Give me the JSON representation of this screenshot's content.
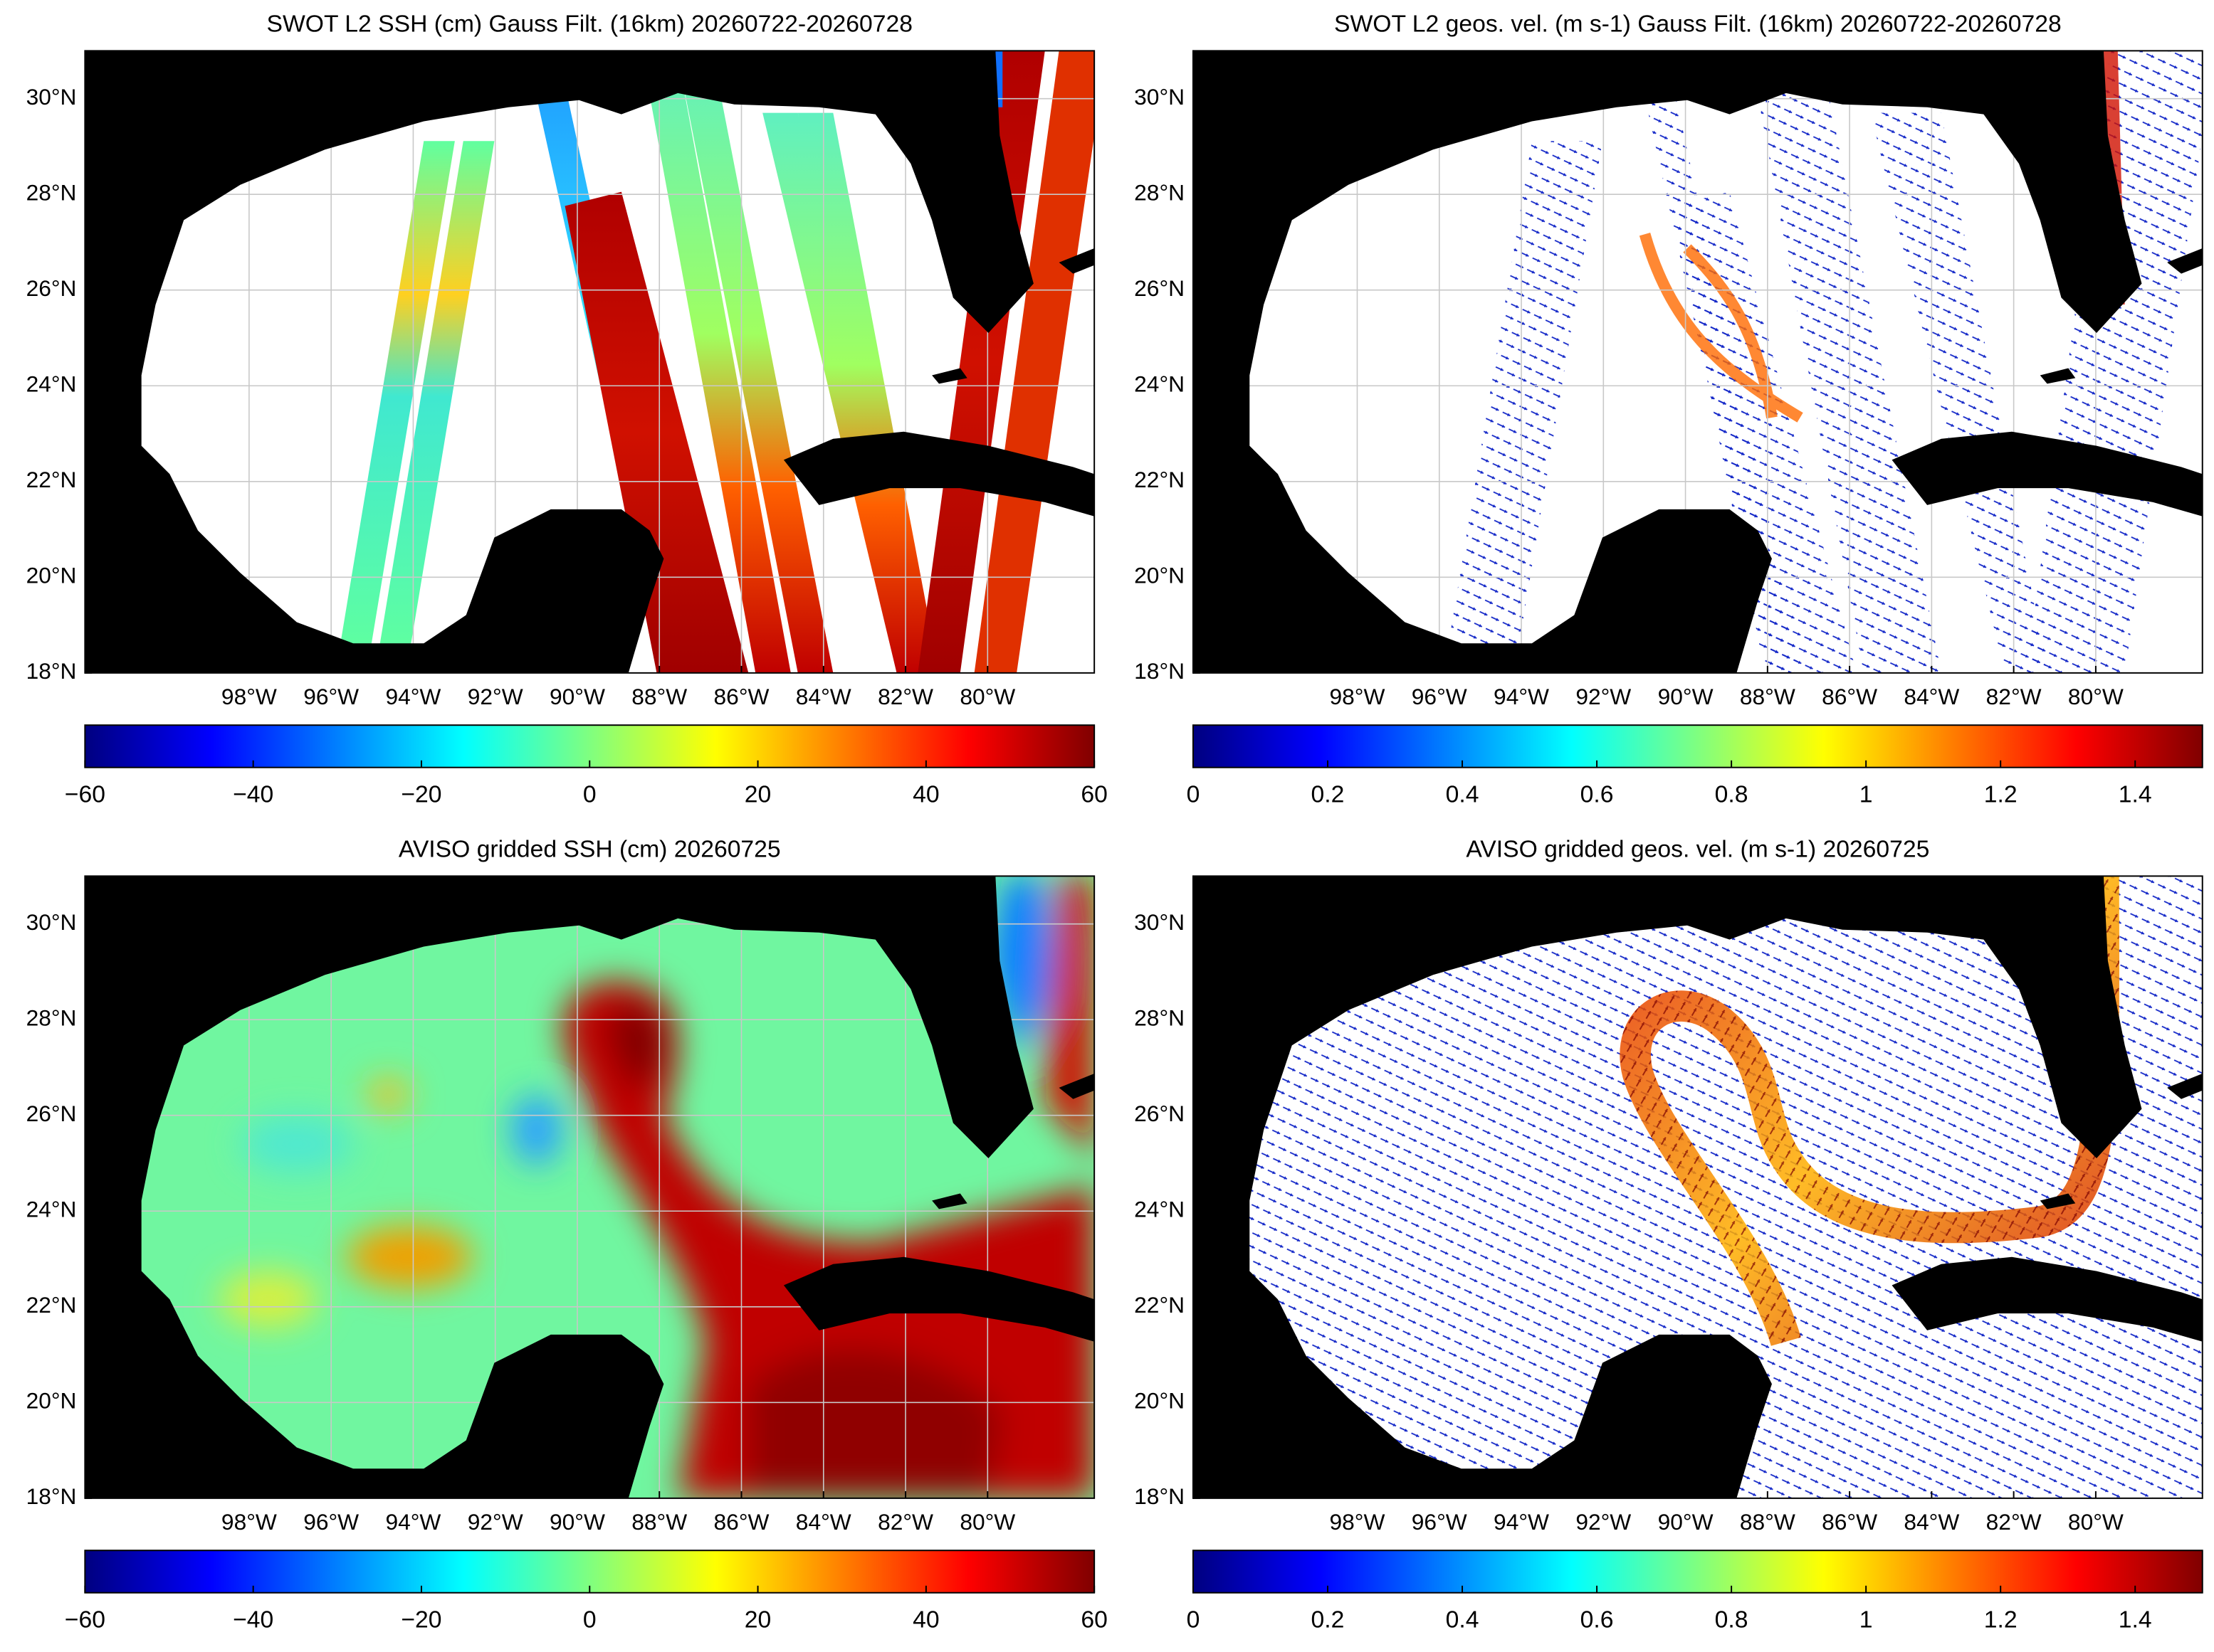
{
  "panels": [
    {
      "title": "SWOT L2 SSH (cm) Gauss Filt. (16km) 20260722-20260728",
      "xlim": [
        -102,
        -77.4
      ],
      "ylim": [
        18,
        31
      ],
      "xticks": [
        {
          "value": -98,
          "label": "98°W"
        },
        {
          "value": -96,
          "label": "96°W"
        },
        {
          "value": -94,
          "label": "94°W"
        },
        {
          "value": -92,
          "label": "92°W"
        },
        {
          "value": -90,
          "label": "90°W"
        },
        {
          "value": -88,
          "label": "88°W"
        },
        {
          "value": -86,
          "label": "86°W"
        },
        {
          "value": -84,
          "label": "84°W"
        },
        {
          "value": -82,
          "label": "82°W"
        },
        {
          "value": -80,
          "label": "80°W"
        }
      ],
      "yticks": [
        {
          "value": 18,
          "label": "18°N"
        },
        {
          "value": 20,
          "label": "20°N"
        },
        {
          "value": 22,
          "label": "22°N"
        },
        {
          "value": 24,
          "label": "24°N"
        },
        {
          "value": 26,
          "label": "26°N"
        },
        {
          "value": 28,
          "label": "28°N"
        },
        {
          "value": 30,
          "label": "30°N"
        }
      ],
      "grid": true,
      "colorbar": {
        "colormap": "jet",
        "lim": [
          -60,
          60
        ],
        "ticks": [
          {
            "value": -60,
            "label": "−60"
          },
          {
            "value": -40,
            "label": "−40"
          },
          {
            "value": -20,
            "label": "−20"
          },
          0,
          20,
          40,
          60
        ]
      }
    },
    {
      "title": "SWOT L2 geos. vel. (m s-1) Gauss Filt. (16km) 20260722-20260728",
      "xlim": [
        -102,
        -77.4
      ],
      "ylim": [
        18,
        31
      ],
      "xticks": [
        {
          "value": -98,
          "label": "98°W"
        },
        {
          "value": -96,
          "label": "96°W"
        },
        {
          "value": -94,
          "label": "94°W"
        },
        {
          "value": -92,
          "label": "92°W"
        },
        {
          "value": -90,
          "label": "90°W"
        },
        {
          "value": -88,
          "label": "88°W"
        },
        {
          "value": -86,
          "label": "86°W"
        },
        {
          "value": -84,
          "label": "84°W"
        },
        {
          "value": -82,
          "label": "82°W"
        },
        {
          "value": -80,
          "label": "80°W"
        }
      ],
      "yticks": [
        {
          "value": 18,
          "label": "18°N"
        },
        {
          "value": 20,
          "label": "20°N"
        },
        {
          "value": 22,
          "label": "22°N"
        },
        {
          "value": 24,
          "label": "24°N"
        },
        {
          "value": 26,
          "label": "26°N"
        },
        {
          "value": 28,
          "label": "28°N"
        },
        {
          "value": 30,
          "label": "30°N"
        }
      ],
      "grid": true,
      "colorbar": {
        "colormap": "jet",
        "lim": [
          0,
          1.5
        ],
        "ticks": [
          0,
          0.2,
          0.4,
          0.6,
          0.8,
          1,
          1.2,
          1.4
        ]
      }
    },
    {
      "title": "AVISO gridded SSH (cm) 20260725",
      "xlim": [
        -102,
        -77.4
      ],
      "ylim": [
        18,
        31
      ],
      "xticks": [
        {
          "value": -98,
          "label": "98°W"
        },
        {
          "value": -96,
          "label": "96°W"
        },
        {
          "value": -94,
          "label": "94°W"
        },
        {
          "value": -92,
          "label": "92°W"
        },
        {
          "value": -90,
          "label": "90°W"
        },
        {
          "value": -88,
          "label": "88°W"
        },
        {
          "value": -86,
          "label": "86°W"
        },
        {
          "value": -84,
          "label": "84°W"
        },
        {
          "value": -82,
          "label": "82°W"
        },
        {
          "value": -80,
          "label": "80°W"
        }
      ],
      "yticks": [
        {
          "value": 18,
          "label": "18°N"
        },
        {
          "value": 20,
          "label": "20°N"
        },
        {
          "value": 22,
          "label": "22°N"
        },
        {
          "value": 24,
          "label": "24°N"
        },
        {
          "value": 26,
          "label": "26°N"
        },
        {
          "value": 28,
          "label": "28°N"
        },
        {
          "value": 30,
          "label": "30°N"
        }
      ],
      "grid": true,
      "colorbar": {
        "colormap": "jet",
        "lim": [
          -60,
          60
        ],
        "ticks": [
          {
            "value": -60,
            "label": "−60"
          },
          {
            "value": -40,
            "label": "−40"
          },
          {
            "value": -20,
            "label": "−20"
          },
          0,
          20,
          40,
          60
        ]
      }
    },
    {
      "title": "AVISO gridded geos. vel. (m s-1)  20260725",
      "xlim": [
        -102,
        -77.4
      ],
      "ylim": [
        18,
        31
      ],
      "xticks": [
        {
          "value": -98,
          "label": "98°W"
        },
        {
          "value": -96,
          "label": "96°W"
        },
        {
          "value": -94,
          "label": "94°W"
        },
        {
          "value": -92,
          "label": "92°W"
        },
        {
          "value": -90,
          "label": "90°W"
        },
        {
          "value": -88,
          "label": "88°W"
        },
        {
          "value": -86,
          "label": "86°W"
        },
        {
          "value": -84,
          "label": "84°W"
        },
        {
          "value": -82,
          "label": "82°W"
        },
        {
          "value": -80,
          "label": "80°W"
        }
      ],
      "yticks": [
        {
          "value": 18,
          "label": "18°N"
        },
        {
          "value": 20,
          "label": "20°N"
        },
        {
          "value": 22,
          "label": "22°N"
        },
        {
          "value": 24,
          "label": "24°N"
        },
        {
          "value": 26,
          "label": "26°N"
        },
        {
          "value": 28,
          "label": "28°N"
        },
        {
          "value": 30,
          "label": "30°N"
        }
      ],
      "grid": false,
      "colorbar": {
        "colormap": "jet",
        "lim": [
          0,
          1.5
        ],
        "ticks": [
          0,
          0.2,
          0.4,
          0.6,
          0.8,
          1,
          1.2,
          1.4
        ]
      }
    }
  ]
}
